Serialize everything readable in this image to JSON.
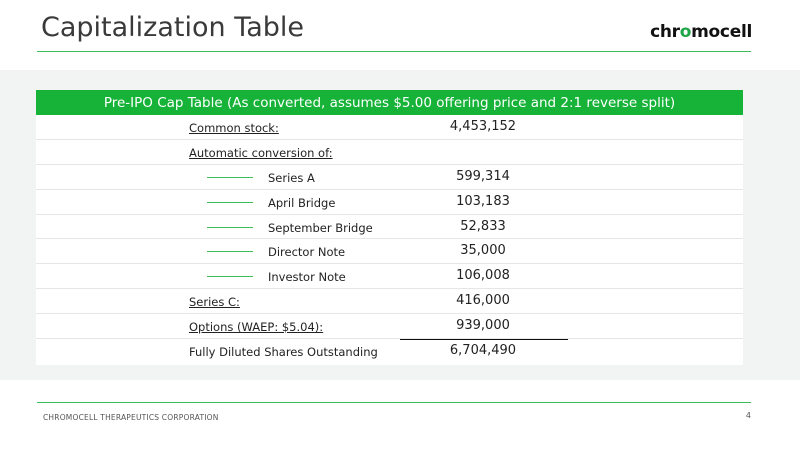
{
  "slide": {
    "title": "Capitalization Table",
    "logo": {
      "prefix": "chr",
      "accent": "o",
      "suffix": "mocell",
      "accent_color": "#1ea545"
    },
    "footer": "CHROMOCELL THERAPEUTICS CORPORATION",
    "page_number": "4"
  },
  "table": {
    "header": "Pre-IPO Cap Table (As converted, assumes $5.00 offering price and 2:1 reverse split)",
    "header_color": "#16b338",
    "rows": [
      {
        "label": "Common stock:",
        "value": "4,453,152"
      },
      {
        "label": "Automatic conversion of:",
        "value": ""
      },
      {
        "label": "Series A",
        "value": "599,314"
      },
      {
        "label": "April Bridge",
        "value": "103,183"
      },
      {
        "label": "September Bridge",
        "value": "52,833"
      },
      {
        "label": "Director Note",
        "value": "35,000"
      },
      {
        "label": "Investor Note",
        "value": "106,008"
      },
      {
        "label": "Series C:",
        "value": "416,000"
      },
      {
        "label": "Options (WAEP: $5.04):",
        "value": "939,000"
      },
      {
        "label": "Fully Diluted Shares Outstanding",
        "value": "6,704,490"
      }
    ]
  }
}
